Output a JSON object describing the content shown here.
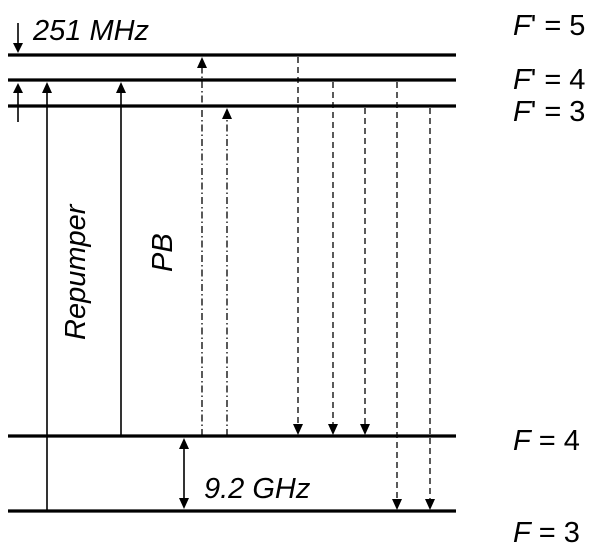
{
  "levels": {
    "f5": "F' = 5",
    "f4p": "F' = 4",
    "f3p": "F' = 3",
    "f4": "F = 4",
    "f3": "F = 3"
  },
  "annotations": {
    "excited_split": "251 MHz",
    "ground_split": "9.2 GHz"
  },
  "transitions": {
    "repumper": "Repumper",
    "probe_beam": "PB"
  }
}
